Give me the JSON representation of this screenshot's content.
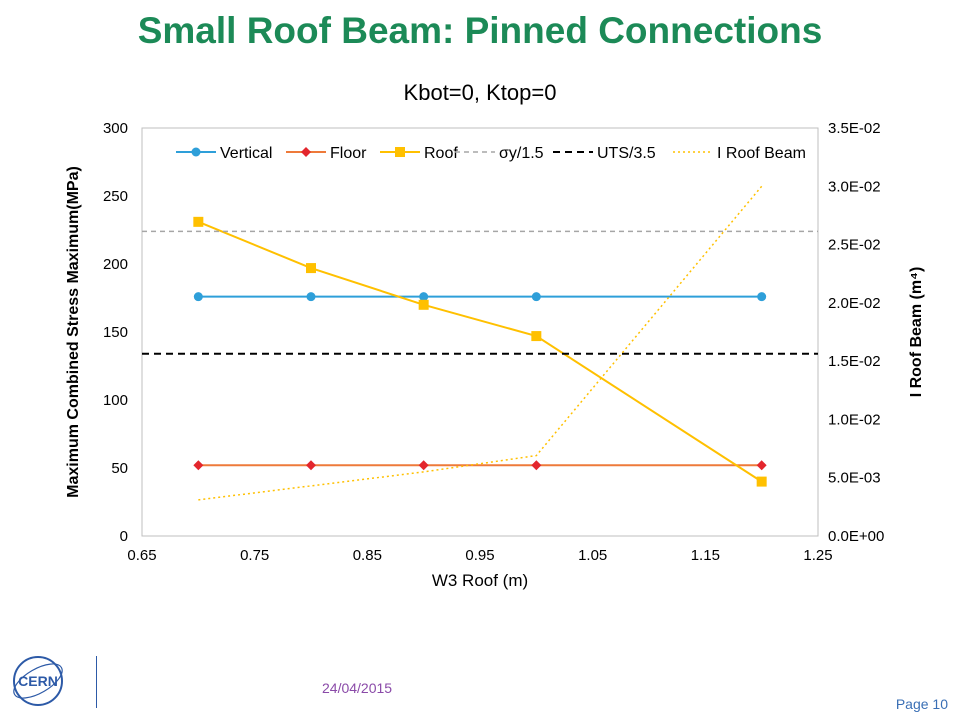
{
  "slide": {
    "title": "Small Roof Beam: Pinned Connections",
    "date": "24/04/2015",
    "page": "Page 10",
    "logo_text": "CERN"
  },
  "colors": {
    "title": "#1c8a57",
    "vertical": "#2e9fd9",
    "floor": "#e3262d",
    "floor_line": "#ee7a3a",
    "roof": "#ffc000",
    "sy": "#a6a6a6",
    "uts": "#000000",
    "i_roof": "#ffc000"
  },
  "chart_data": {
    "type": "line",
    "title": "Kbot=0, Ktop=0",
    "xlabel": "W3 Roof (m)",
    "ylabel": "Maximum  Combined  Stress Maximum(MPa)",
    "y2label": "I Roof Beam (m⁴)",
    "xlim": [
      0.65,
      1.25
    ],
    "ylim": [
      0,
      300
    ],
    "y2lim": [
      0,
      0.035
    ],
    "xticks": [
      "0.65",
      "0.75",
      "0.85",
      "0.95",
      "1.05",
      "1.15",
      "1.25"
    ],
    "yticks": [
      "0",
      "50",
      "100",
      "150",
      "200",
      "250",
      "300"
    ],
    "y2ticks": [
      "0.0E+00",
      "5.0E-03",
      "1.0E-02",
      "1.5E-02",
      "2.0E-02",
      "2.5E-02",
      "3.0E-02",
      "3.5E-02"
    ],
    "grid": false,
    "legend": "top",
    "series": [
      {
        "name": "Vertical",
        "axis": "left",
        "style": "solid",
        "marker": "circle",
        "color": "#2e9fd9",
        "x": [
          0.7,
          0.8,
          0.9,
          1.0,
          1.2
        ],
        "y": [
          176,
          176,
          176,
          176,
          176
        ]
      },
      {
        "name": "Floor",
        "axis": "left",
        "style": "solid",
        "marker": "diamond",
        "color": "#e3262d",
        "line_color": "#ee7a3a",
        "x": [
          0.7,
          0.8,
          0.9,
          1.0,
          1.2
        ],
        "y": [
          52,
          52,
          52,
          52,
          52
        ]
      },
      {
        "name": "Roof",
        "axis": "left",
        "style": "solid",
        "marker": "square",
        "color": "#ffc000",
        "x": [
          0.7,
          0.8,
          0.9,
          1.0,
          1.2
        ],
        "y": [
          231,
          197,
          170,
          147,
          40
        ]
      },
      {
        "name": "σy/1.5",
        "axis": "left",
        "style": "dashed",
        "marker": "none",
        "color": "#a6a6a6",
        "x": [
          0.65,
          1.25
        ],
        "y": [
          224,
          224
        ]
      },
      {
        "name": "UTS/3.5",
        "axis": "left",
        "style": "dashed-bold",
        "marker": "none",
        "color": "#000000",
        "x": [
          0.65,
          1.25
        ],
        "y": [
          134,
          134
        ]
      },
      {
        "name": "I Roof Beam",
        "axis": "right",
        "style": "dotted",
        "marker": "none",
        "color": "#ffc000",
        "x": [
          0.7,
          0.8,
          0.9,
          1.0,
          1.2
        ],
        "y": [
          0.0031,
          0.0043,
          0.0055,
          0.0069,
          0.03
        ]
      }
    ]
  }
}
